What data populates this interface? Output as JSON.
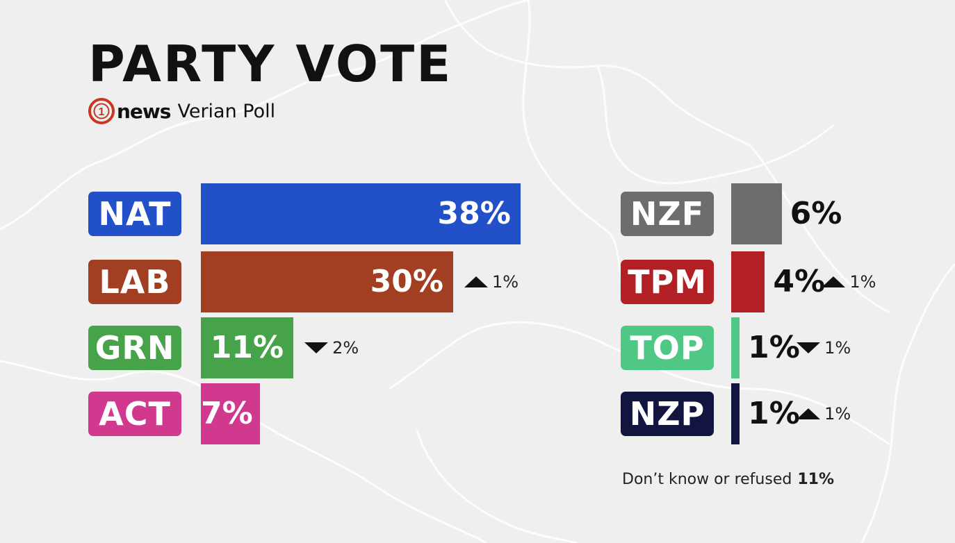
{
  "title": "PARTY VOTE",
  "brand": {
    "logo_text": "1",
    "word": "news",
    "poll": "Verian Poll"
  },
  "colors": {
    "NAT": "#2150c9",
    "LAB": "#a23f22",
    "GRN": "#46a34a",
    "ACT": "#d1398f",
    "NZF": "#6d6d6d",
    "TPM": "#b21f24",
    "TOP": "#4fc785",
    "NZP": "#12153f",
    "logo": "#c8361f"
  },
  "chart_data": {
    "type": "bar",
    "categories": [
      "NAT",
      "LAB",
      "GRN",
      "ACT",
      "NZF",
      "TPM",
      "TOP",
      "NZP"
    ],
    "values": [
      38,
      30,
      11,
      7,
      6,
      4,
      1,
      1
    ],
    "labels": [
      "38%",
      "30%",
      "11%",
      "7%",
      "6%",
      "4%",
      "1%",
      "1%"
    ],
    "changes": [
      null,
      {
        "dir": "up",
        "label": "1%"
      },
      {
        "dir": "down",
        "label": "2%"
      },
      null,
      null,
      {
        "dir": "up",
        "label": "1%"
      },
      {
        "dir": "down",
        "label": "1%"
      },
      {
        "dir": "up",
        "label": "1%"
      }
    ]
  },
  "footnote": {
    "text": "Don’t know or refused",
    "value": "11%"
  }
}
